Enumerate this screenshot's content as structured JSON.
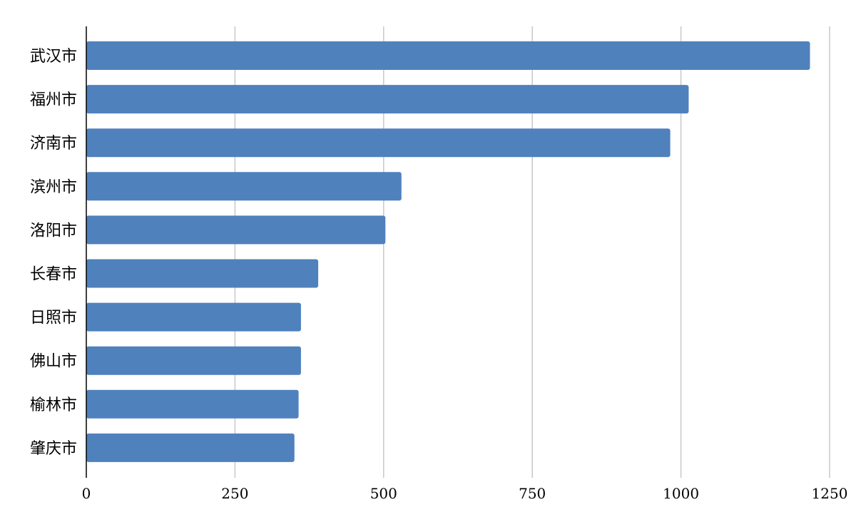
{
  "chart_data": {
    "type": "bar",
    "orientation": "horizontal",
    "categories": [
      "武汉市",
      "福州市",
      "济南市",
      "滨州市",
      "洛阳市",
      "长春市",
      "日照市",
      "佛山市",
      "榆林市",
      "肇庆市"
    ],
    "values": [
      1217,
      1013,
      982,
      530,
      503,
      390,
      361,
      361,
      357,
      350
    ],
    "title": "",
    "xlabel": "",
    "ylabel": "",
    "xlim": [
      0,
      1250
    ],
    "x_ticks": [
      0,
      250,
      500,
      750,
      1000,
      1250
    ],
    "grid": true,
    "legend": "none",
    "bar_color": "#4f81bd",
    "grid_color": "#c8c8c8"
  }
}
